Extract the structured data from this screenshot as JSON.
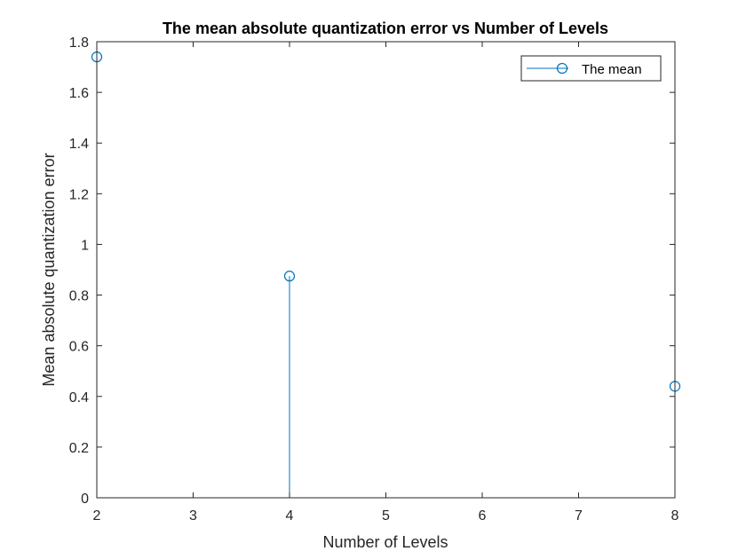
{
  "chart_data": {
    "type": "stem",
    "title": "The mean absolute quantization error vs Number of Levels",
    "xlabel": "Number of Levels",
    "ylabel": "Mean absolute quantization error",
    "xlim": [
      2,
      8
    ],
    "ylim": [
      0,
      1.8
    ],
    "xticks": [
      2,
      3,
      4,
      5,
      6,
      7,
      8
    ],
    "yticks": [
      0,
      0.2,
      0.4,
      0.6,
      0.8,
      1,
      1.2,
      1.4,
      1.6,
      1.8
    ],
    "xtick_labels": [
      "2",
      "3",
      "4",
      "5",
      "6",
      "7",
      "8"
    ],
    "ytick_labels": [
      "0",
      "0.2",
      "0.4",
      "0.6",
      "0.8",
      "1",
      "1.2",
      "1.4",
      "1.6",
      "1.8"
    ],
    "grid": false,
    "legend_position": "top-right",
    "series": [
      {
        "name": "The mean",
        "color": "#0072BD",
        "marker": "circle-open",
        "x": [
          2,
          4,
          8
        ],
        "y": [
          1.74,
          0.875,
          0.44
        ]
      }
    ]
  }
}
